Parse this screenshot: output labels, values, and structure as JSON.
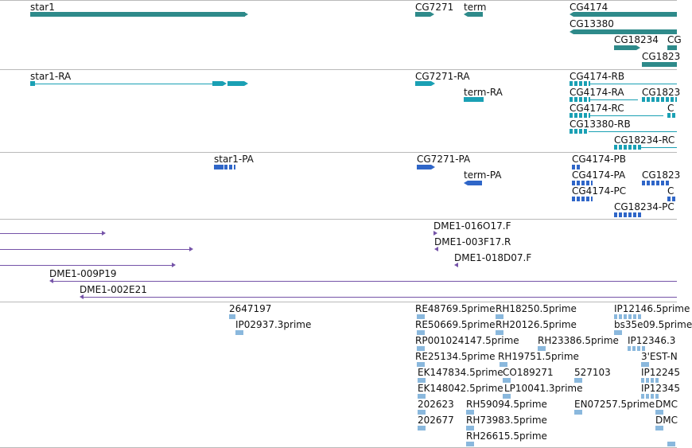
{
  "colors": {
    "gene": "#2e8a8a",
    "transcript": "#1aa0b4",
    "protein": "#2f66c8",
    "clone": "#7553a8",
    "est": "#8ab8dd"
  },
  "tracks": {
    "genes": {
      "star1": "star1",
      "cg7271": "CG7271",
      "term": "term",
      "cg4174": "CG4174",
      "cg13380": "CG13380",
      "cg18234": "CG18234",
      "cg_partial": "CG",
      "cg1823_partial": "CG1823"
    },
    "transcripts": {
      "star1_ra": "star1-RA",
      "cg7271_ra": "CG7271-RA",
      "term_ra": "term-RA",
      "cg4174_rb": "CG4174-RB",
      "cg4174_ra": "CG4174-RA",
      "cg1823_partial": "CG1823",
      "cg4174_rc": "CG4174-RC",
      "c_partial": "C",
      "cg13380_rb": "CG13380-RB",
      "cg18234_rc": "CG18234-RC"
    },
    "proteins": {
      "star1_pa": "star1-PA",
      "cg7271_pa": "CG7271-PA",
      "term_pa": "term-PA",
      "cg4174_pb": "CG4174-PB",
      "cg4174_pa": "CG4174-PA",
      "cg1823_partial": "CG1823",
      "cg4174_pc": "CG4174-PC",
      "c_partial": "C",
      "cg18234_pc": "CG18234-PC"
    },
    "clones": {
      "dme1_016o17": "DME1-016O17.F",
      "dme1_003f17": "DME1-003F17.R",
      "dme1_018d07": "DME1-018D07.F",
      "dme1_009p19": "DME1-009P19",
      "dme1_002e21": "DME1-002E21"
    },
    "ests": {
      "e2647197": "2647197",
      "ip02937": "IP02937.3prime",
      "re48769": "RE48769.5prime",
      "rh18250": "RH18250.5prime",
      "ip12146": "IP12146.5prime",
      "re50669": "RE50669.5prime",
      "rh20126": "RH20126.5prime",
      "bs35e09": "bs35e09.5prime",
      "rp001024147": "RP001024147.5prime",
      "rh23386": "RH23386.5prime",
      "ip12346": "IP12346.3",
      "re25134": "RE25134.5prime",
      "rh19751": "RH19751.5prime",
      "est_n": "3'EST-N",
      "ek147834": "EK147834.5prime",
      "co189271": "CO189271",
      "e527103": "527103",
      "ip12245": "IP12245",
      "ek148042": "EK148042.5prime",
      "lp10041": "LP10041.3prime",
      "ip12345": "IP12345",
      "e202623": "202623",
      "rh59094": "RH59094.5prime",
      "en07257": "EN07257.5prime",
      "dmc1": "DMC",
      "e202677": "202677",
      "rh73983": "RH73983.5prime",
      "dmc2": "DMC",
      "rh26615": "RH26615.5prime"
    }
  }
}
